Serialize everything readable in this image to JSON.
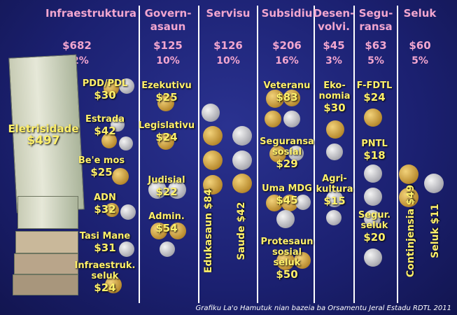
{
  "columns": [
    {
      "title": "Infraestruktura",
      "amount": "$682",
      "percent": "52%",
      "items": [
        {
          "name": "PDD/PDL",
          "amount": "$30"
        },
        {
          "name": "Estrada",
          "amount": "$42"
        },
        {
          "name": "Eletrisidade",
          "amount": "$497"
        },
        {
          "name": "Be'e mos",
          "amount": "$25"
        },
        {
          "name": "ADN",
          "amount": "$32"
        },
        {
          "name": "Tasi Mane",
          "amount": "$31"
        },
        {
          "name": "Infraestruk.\nseluk",
          "amount": "$24"
        }
      ]
    },
    {
      "title": "Govern-\nasaun",
      "amount": "$125",
      "percent": "10%",
      "items": [
        {
          "name": "Ezekutivu",
          "amount": "$25"
        },
        {
          "name": "Legislativu",
          "amount": "$24"
        },
        {
          "name": "Judisial",
          "amount": "$22"
        },
        {
          "name": "Admin.",
          "amount": "$54"
        }
      ]
    },
    {
      "title": "Servisu",
      "amount": "$126",
      "percent": "10%",
      "items": [
        {
          "name": "Edukasaun",
          "amount": "$84"
        },
        {
          "name": "Saude",
          "amount": "$42"
        }
      ]
    },
    {
      "title": "Subsidiu",
      "amount": "$206",
      "percent": "16%",
      "items": [
        {
          "name": "Veteranu",
          "amount": "$83"
        },
        {
          "name": "Seguransa\nsosial",
          "amount": "$29"
        },
        {
          "name": "Uma MDG",
          "amount": "$45"
        },
        {
          "name": "Protesaun\nsosial\nseluk",
          "amount": "$50"
        }
      ]
    },
    {
      "title": "Desen-\nvolvi.",
      "amount": "$45",
      "percent": "3%",
      "items": [
        {
          "name": "Eko-\nnomia",
          "amount": "$30"
        },
        {
          "name": "Agri-\nkultura",
          "amount": "$15"
        }
      ]
    },
    {
      "title": "Segu-\nransa",
      "amount": "$63",
      "percent": "5%",
      "items": [
        {
          "name": "F-FDTL",
          "amount": "$24"
        },
        {
          "name": "PNTL",
          "amount": "$18"
        },
        {
          "name": "Segur.\nseluk",
          "amount": "$20"
        }
      ]
    },
    {
      "title": "Seluk",
      "amount": "$60",
      "percent": "5%",
      "items": [
        {
          "name": "Continjensia",
          "amount": "$49"
        },
        {
          "name": "Seluk",
          "amount": "$11"
        }
      ]
    }
  ],
  "footer": "Grafiku La'o Hamutuk nian bazeia ba Orsamentu Jeral Estadu RDTL 2011"
}
